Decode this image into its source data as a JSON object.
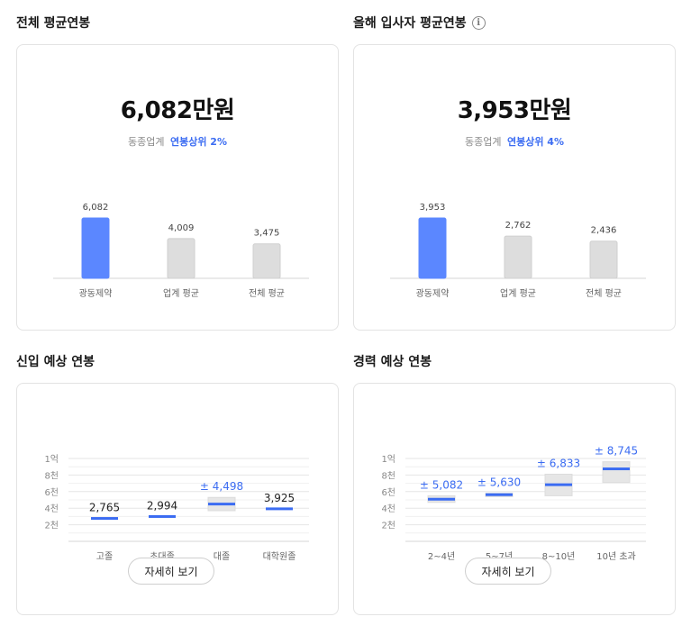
{
  "colors": {
    "accent": "#5b87ff",
    "accent_dark": "#3b6cf2",
    "bar_gray": "#dddddd",
    "range_gray": "#e6e6e6"
  },
  "sections": {
    "overall": {
      "title": "전체 평균연봉",
      "value": "6,082만원",
      "rank_prefix": "동종업계",
      "rank_value": "연봉상위 2%"
    },
    "new_hire": {
      "title": "올해 입사자 평균연봉",
      "info_icon": "info-icon",
      "value": "3,953만원",
      "rank_prefix": "동종업계",
      "rank_value": "연봉상위 4%"
    },
    "entry": {
      "title": "신입 예상 연봉",
      "detail_button": "자세히 보기"
    },
    "experienced": {
      "title": "경력 예상 연봉",
      "detail_button": "자세히 보기"
    }
  },
  "chart_data": [
    {
      "type": "bar",
      "categories": [
        "광동제약",
        "업계 평균",
        "전체 평균"
      ],
      "values": [
        6082,
        4009,
        3475
      ],
      "value_labels": [
        "6,082",
        "4,009",
        "3,475"
      ],
      "highlight_index": 0,
      "max": 6082
    },
    {
      "type": "bar",
      "categories": [
        "광동제약",
        "업계 평균",
        "전체 평균"
      ],
      "values": [
        3953,
        2762,
        2436
      ],
      "value_labels": [
        "3,953",
        "2,762",
        "2,436"
      ],
      "highlight_index": 0,
      "max": 3953
    },
    {
      "type": "range",
      "y_ticks": [
        "1억",
        "8천",
        "6천",
        "4천",
        "2천"
      ],
      "y_tick_values": [
        10000,
        8000,
        6000,
        4000,
        2000
      ],
      "ylim": [
        0,
        11000
      ],
      "categories": [
        "고졸",
        "초대졸",
        "대졸",
        "대학원졸"
      ],
      "values": [
        2765,
        2994,
        4498,
        3925
      ],
      "value_labels": [
        "2,765",
        "2,994",
        "± 4,498",
        "3,925"
      ],
      "label_accent": [
        false,
        false,
        true,
        false
      ],
      "range_low": [
        null,
        null,
        3700,
        null
      ],
      "range_high": [
        null,
        null,
        5300,
        null
      ]
    },
    {
      "type": "range",
      "y_ticks": [
        "1억",
        "8천",
        "6천",
        "4천",
        "2천"
      ],
      "y_tick_values": [
        10000,
        8000,
        6000,
        4000,
        2000
      ],
      "ylim": [
        0,
        11000
      ],
      "categories": [
        "2~4년",
        "5~7년",
        "8~10년",
        "10년 초과"
      ],
      "values": [
        5082,
        5630,
        6833,
        8745
      ],
      "value_labels": [
        "± 5,082",
        "± 5,630",
        "± 6,833",
        "± 8,745"
      ],
      "label_accent": [
        true,
        true,
        true,
        true
      ],
      "range_low": [
        4700,
        5400,
        5500,
        7100
      ],
      "range_high": [
        5500,
        5800,
        8100,
        9600
      ]
    }
  ]
}
